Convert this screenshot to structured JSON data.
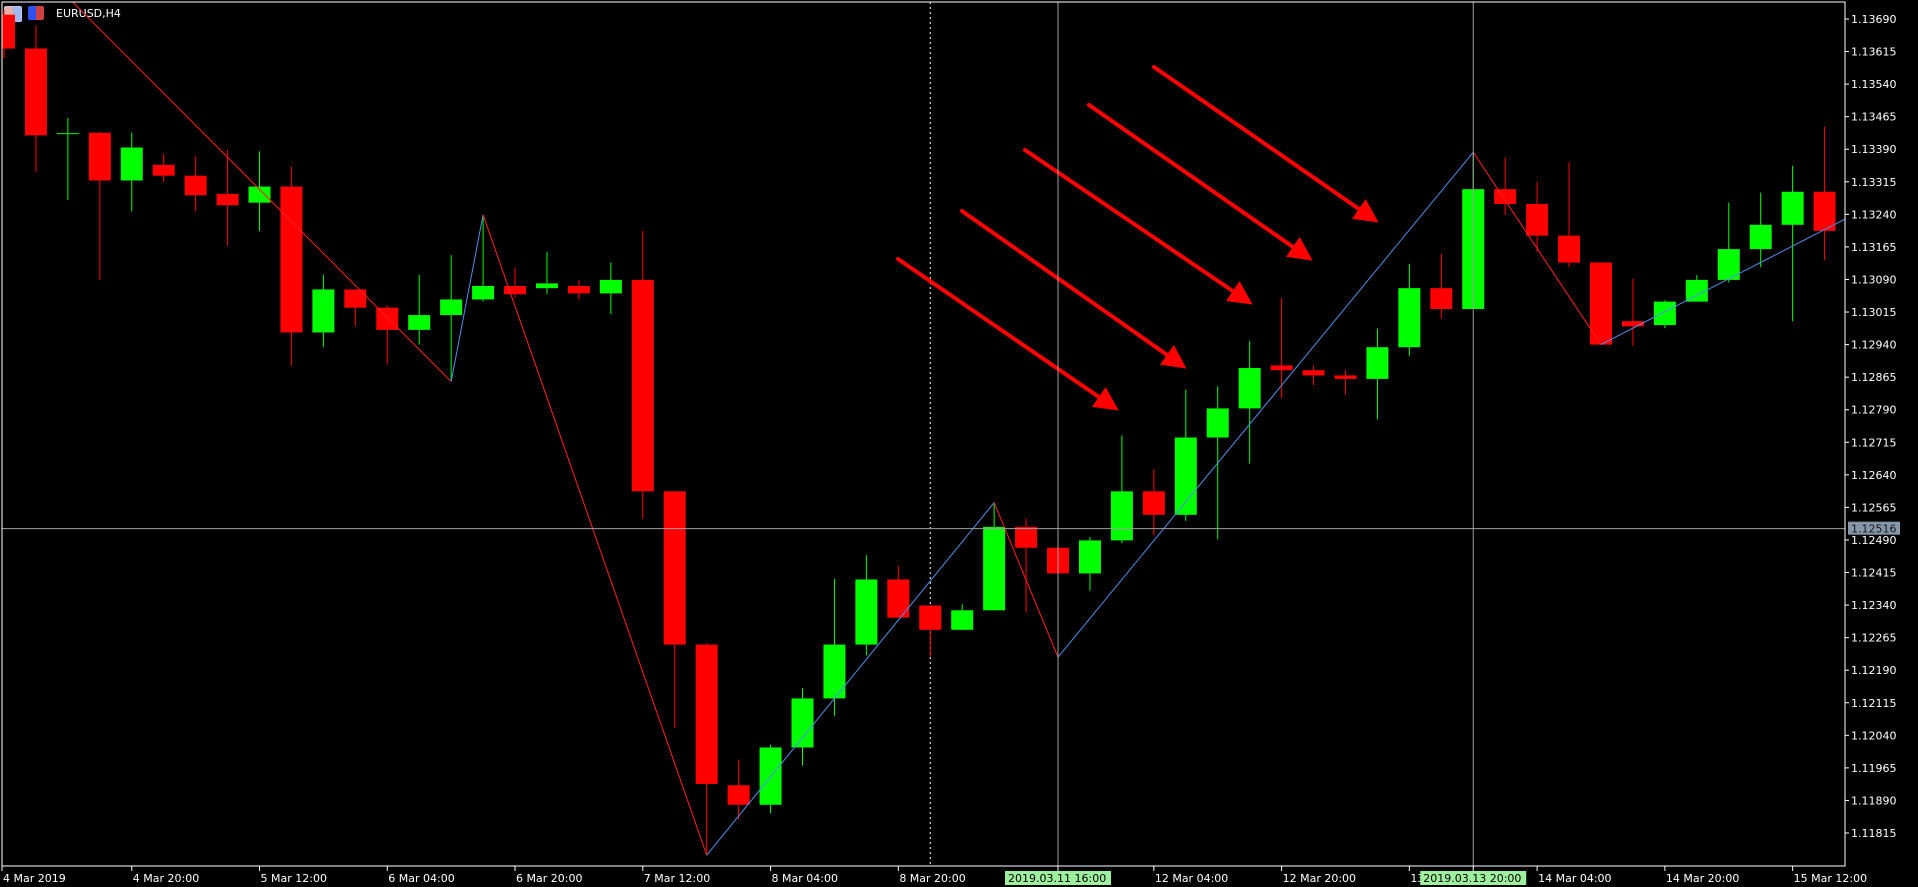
{
  "window": {
    "symbol_title": "EURUSD,H4",
    "icons": [
      "chart-window-icon",
      "expert-advisor-icon"
    ]
  },
  "colors": {
    "bull": "#00ff00",
    "bear": "#ff0000",
    "zigzag_up": "#4f8fe8",
    "zigzag_down": "#ff2020",
    "arrow": "#ff0000",
    "grid_text": "#ffffff",
    "crosshair": "#a0a0a0",
    "highlight_label_bg": "#9ef09e",
    "price_label_bg": "#8597a8"
  },
  "price_axis": {
    "labels": [
      "1.13690",
      "1.13615",
      "1.13540",
      "1.13465",
      "1.13390",
      "1.13315",
      "1.13240",
      "1.13165",
      "1.13090",
      "1.13015",
      "1.12940",
      "1.12865",
      "1.12790",
      "1.12715",
      "1.12640",
      "1.12565",
      "1.12490",
      "1.12415",
      "1.12340",
      "1.12265",
      "1.12190",
      "1.12115",
      "1.12040",
      "1.11965",
      "1.11890",
      "1.11815"
    ],
    "range": [
      1.11785,
      1.13734
    ]
  },
  "time_axis": {
    "labels": [
      {
        "text": "4 Mar 2019",
        "time": "2019.03.04 00:00"
      },
      {
        "text": "4 Mar 20:00",
        "time": "2019.03.04 20:00"
      },
      {
        "text": "5 Mar 12:00",
        "time": "2019.03.05 12:00"
      },
      {
        "text": "6 Mar 04:00",
        "time": "2019.03.06 04:00"
      },
      {
        "text": "6 Mar 20:00",
        "time": "2019.03.06 20:00"
      },
      {
        "text": "7 Mar 12:00",
        "time": "2019.03.07 12:00"
      },
      {
        "text": "8 Mar 04:00",
        "time": "2019.03.08 04:00"
      },
      {
        "text": "8 Mar 20:00",
        "time": "2019.03.08 20:00"
      },
      {
        "text": "12 Mar 04:00",
        "time": "2019.03.12 04:00"
      },
      {
        "text": "12 Mar 20:00",
        "time": "2019.03.12 20:00"
      },
      {
        "text": "13",
        "time": "2019.03.13 12:00"
      },
      {
        "text": "14 Mar 04:00",
        "time": "2019.03.14 04:00"
      },
      {
        "text": "14 Mar 20:00",
        "time": "2019.03.14 20:00"
      },
      {
        "text": "15 Mar 12:00",
        "time": "2019.03.15 12:00"
      }
    ]
  },
  "crosshairs": [
    {
      "time": "2019.03.11 16:00",
      "label": "2019.03.11 16:00"
    },
    {
      "time": "2019.03.13 20:00",
      "label": "2019.03.13 20:00"
    }
  ],
  "crosshair_price": {
    "price": 1.12516,
    "label": "1.12516"
  },
  "period_separator": {
    "time": "2019.03.11 00:00"
  },
  "chart_data": {
    "type": "candlestick",
    "title": "EURUSD,H4",
    "ylim": [
      1.11785,
      1.13734
    ],
    "columns": [
      "time",
      "open",
      "high",
      "low",
      "close"
    ],
    "candles": [
      [
        "2019.03.04 04:00",
        1.137,
        1.13712,
        1.136,
        1.13622
      ],
      [
        "2019.03.04 08:00",
        1.13622,
        1.13676,
        1.13338,
        1.13422
      ],
      [
        "2019.03.04 12:00",
        1.13425,
        1.13462,
        1.13273,
        1.13427
      ],
      [
        "2019.03.04 16:00",
        1.13428,
        1.1343,
        1.13089,
        1.13318
      ],
      [
        "2019.03.04 20:00",
        1.13318,
        1.13428,
        1.13247,
        1.13394
      ],
      [
        "2019.03.05 00:00",
        1.13354,
        1.1338,
        1.13315,
        1.13329
      ],
      [
        "2019.03.05 04:00",
        1.13329,
        1.13374,
        1.13247,
        1.13284
      ],
      [
        "2019.03.05 08:00",
        1.13287,
        1.13388,
        1.13168,
        1.13261
      ],
      [
        "2019.03.05 12:00",
        1.13267,
        1.13385,
        1.13202,
        1.13304
      ],
      [
        "2019.03.05 16:00",
        1.13304,
        1.13349,
        1.12892,
        1.12968
      ],
      [
        "2019.03.05 20:00",
        1.12968,
        1.13101,
        1.12934,
        1.13067
      ],
      [
        "2019.03.06 00:00",
        1.13067,
        1.13067,
        1.12982,
        1.13025
      ],
      [
        "2019.03.06 04:00",
        1.13025,
        1.1303,
        1.12895,
        1.12974
      ],
      [
        "2019.03.06 08:00",
        1.12974,
        1.13101,
        1.1294,
        1.13008
      ],
      [
        "2019.03.06 12:00",
        1.13008,
        1.13146,
        1.12855,
        1.13044
      ],
      [
        "2019.03.06 16:00",
        1.13044,
        1.13239,
        1.13039,
        1.13075
      ],
      [
        "2019.03.06 20:00",
        1.13075,
        1.13118,
        1.13048,
        1.13056
      ],
      [
        "2019.03.07 00:00",
        1.1307,
        1.13154,
        1.13056,
        1.13081
      ],
      [
        "2019.03.07 04:00",
        1.13075,
        1.13089,
        1.13044,
        1.13058
      ],
      [
        "2019.03.07 08:00",
        1.13058,
        1.13129,
        1.1301,
        1.13089
      ],
      [
        "2019.03.07 12:00",
        1.13089,
        1.13202,
        1.12539,
        1.12602
      ],
      [
        "2019.03.07 16:00",
        1.12602,
        1.12602,
        1.12057,
        1.12249
      ],
      [
        "2019.03.07 20:00",
        1.12249,
        1.12252,
        1.11764,
        1.11928
      ],
      [
        "2019.03.08 00:00",
        1.11925,
        1.11984,
        1.11846,
        1.1188
      ],
      [
        "2019.03.08 04:00",
        1.1188,
        1.12018,
        1.1186,
        1.12012
      ],
      [
        "2019.03.08 08:00",
        1.12012,
        1.12148,
        1.1197,
        1.12125
      ],
      [
        "2019.03.08 12:00",
        1.12125,
        1.12401,
        1.12085,
        1.12249
      ],
      [
        "2019.03.08 16:00",
        1.12249,
        1.12455,
        1.12224,
        1.12399
      ],
      [
        "2019.03.08 20:00",
        1.12399,
        1.12429,
        1.12311,
        1.12311
      ],
      [
        "2019.03.11 00:00",
        1.12339,
        1.12339,
        1.12221,
        1.12283
      ],
      [
        "2019.03.11 04:00",
        1.12283,
        1.12342,
        1.12283,
        1.12328
      ],
      [
        "2019.03.11 08:00",
        1.12328,
        1.12576,
        1.12328,
        1.1252
      ],
      [
        "2019.03.11 12:00",
        1.1252,
        1.12539,
        1.12322,
        1.12472
      ],
      [
        "2019.03.11 16:00",
        1.12472,
        1.12497,
        1.12351,
        1.12413
      ],
      [
        "2019.03.11 20:00",
        1.12413,
        1.12497,
        1.12373,
        1.12489
      ],
      [
        "2019.03.12 00:00",
        1.12489,
        1.12731,
        1.12483,
        1.12602
      ],
      [
        "2019.03.12 04:00",
        1.12602,
        1.12652,
        1.125,
        1.12548
      ],
      [
        "2019.03.12 08:00",
        1.12548,
        1.12836,
        1.12534,
        1.12726
      ],
      [
        "2019.03.12 12:00",
        1.12726,
        1.12844,
        1.12492,
        1.12793
      ],
      [
        "2019.03.12 16:00",
        1.12793,
        1.12948,
        1.12666,
        1.12886
      ],
      [
        "2019.03.12 20:00",
        1.12892,
        1.13047,
        1.12816,
        1.12881
      ],
      [
        "2019.03.13 00:00",
        1.12881,
        1.12892,
        1.12847,
        1.12869
      ],
      [
        "2019.03.13 04:00",
        1.12869,
        1.12881,
        1.12824,
        1.12861
      ],
      [
        "2019.03.13 08:00",
        1.12861,
        1.12977,
        1.12768,
        1.12934
      ],
      [
        "2019.03.13 12:00",
        1.12934,
        1.13126,
        1.12914,
        1.1307
      ],
      [
        "2019.03.13 16:00",
        1.1307,
        1.13149,
        1.13,
        1.13022
      ],
      [
        "2019.03.13 20:00",
        1.13022,
        1.13383,
        1.13022,
        1.13298
      ],
      [
        "2019.03.14 00:00",
        1.13298,
        1.13371,
        1.13239,
        1.13264
      ],
      [
        "2019.03.14 04:00",
        1.13264,
        1.13315,
        1.13154,
        1.13191
      ],
      [
        "2019.03.14 08:00",
        1.13191,
        1.1336,
        1.13118,
        1.13129
      ],
      [
        "2019.03.14 12:00",
        1.13129,
        1.13129,
        1.1294,
        1.1294
      ],
      [
        "2019.03.14 16:00",
        1.12994,
        1.13092,
        1.12937,
        1.12982
      ],
      [
        "2019.03.14 20:00",
        1.12985,
        1.13042,
        1.12978,
        1.13039
      ],
      [
        "2019.03.15 00:00",
        1.13039,
        1.131,
        1.13039,
        1.13089
      ],
      [
        "2019.03.15 04:00",
        1.13089,
        1.13267,
        1.13083,
        1.1316
      ],
      [
        "2019.03.15 08:00",
        1.1316,
        1.1329,
        1.13118,
        1.13216
      ],
      [
        "2019.03.15 12:00",
        1.13216,
        1.13352,
        1.12994,
        1.13292
      ],
      [
        "2019.03.15 16:00",
        1.13292,
        1.13442,
        1.13135,
        1.13202
      ]
    ],
    "zigzag": [
      [
        "2019.03.04 12:00",
        1.1374
      ],
      [
        "2019.03.06 12:00",
        1.12855
      ],
      [
        "2019.03.06 16:00",
        1.13239
      ],
      [
        "2019.03.07 20:00",
        1.11764
      ],
      [
        "2019.03.11 08:00",
        1.12576
      ],
      [
        "2019.03.11 16:00",
        1.1222
      ],
      [
        "2019.03.13 20:00",
        1.13383
      ],
      [
        "2019.03.14 12:00",
        1.1294
      ],
      [
        "2019.03.15 16:00",
        1.13205
      ]
    ]
  }
}
